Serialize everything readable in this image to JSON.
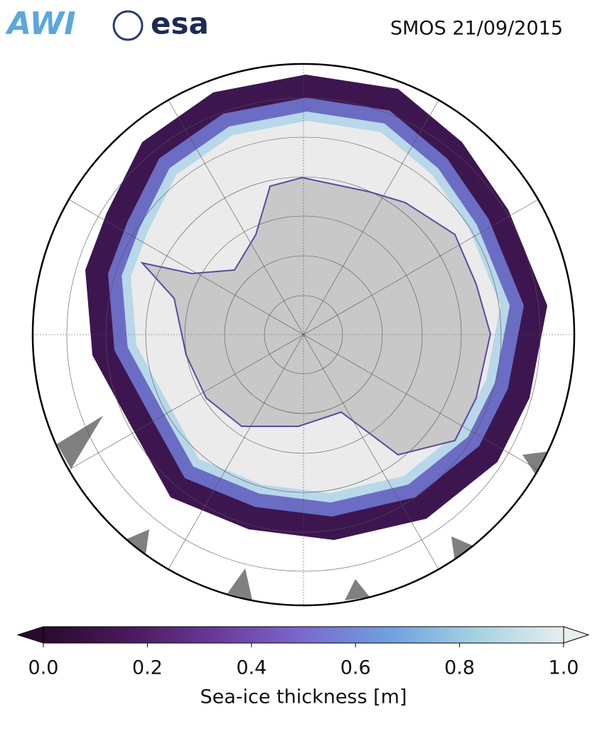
{
  "header": {
    "logos": {
      "awi": "AWI",
      "esa": "esa"
    },
    "title": "SMOS 21/09/2015"
  },
  "colorbar": {
    "label": "Sea-ice thickness [m]",
    "lim": [
      0,
      1
    ],
    "ticks": [
      {
        "value": 0,
        "label": "0.0"
      },
      0.2,
      0.4,
      0.6,
      0.8,
      {
        "value": 1,
        "label": "1.0"
      }
    ],
    "colormap": [
      "#2a0a2c",
      "#4a1a5c",
      "#6a3a9a",
      "#7a6ad0",
      "#6fa0e0",
      "#a6d2e2",
      "#e6eeee"
    ]
  }
}
